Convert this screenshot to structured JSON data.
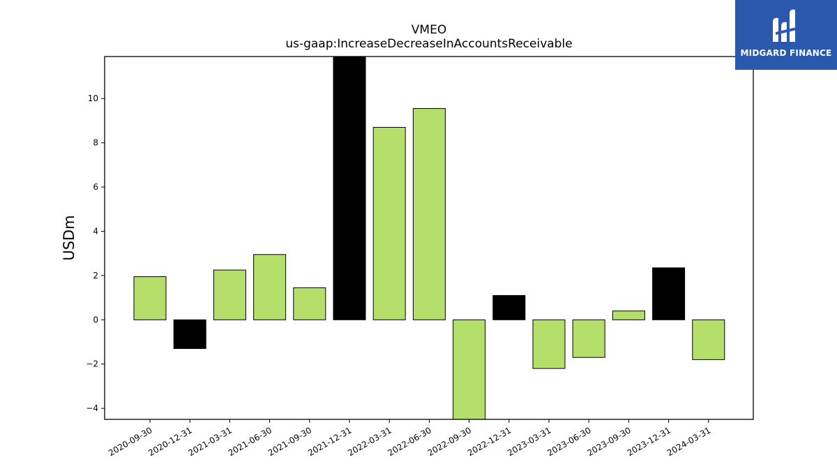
{
  "chart_data": {
    "type": "bar",
    "title": "VMEO",
    "subtitle": "us-gaap:IncreaseDecreaseInAccountsReceivable",
    "xlabel": "",
    "ylabel": "USDm",
    "categories": [
      "2020-09-30",
      "2020-12-31",
      "2021-03-31",
      "2021-06-30",
      "2021-09-30",
      "2021-12-31",
      "2022-03-31",
      "2022-06-30",
      "2022-09-30",
      "2022-12-31",
      "2023-03-31",
      "2023-06-30",
      "2023-09-30",
      "2023-12-31",
      "2024-03-31"
    ],
    "values": [
      1.95,
      -1.3,
      2.25,
      2.95,
      1.45,
      11.9,
      8.7,
      9.55,
      -4.6,
      1.1,
      -2.2,
      -1.7,
      0.4,
      2.35,
      -1.8
    ],
    "bar_colors": [
      "#b5df6b",
      "#000000",
      "#b5df6b",
      "#b5df6b",
      "#b5df6b",
      "#000000",
      "#b5df6b",
      "#b5df6b",
      "#b5df6b",
      "#000000",
      "#b5df6b",
      "#b5df6b",
      "#b5df6b",
      "#000000",
      "#b5df6b"
    ],
    "ylim": [
      -4.5,
      11.9
    ],
    "yticks": [
      -4,
      -2,
      0,
      2,
      4,
      6,
      8,
      10
    ],
    "ytick_labels": [
      "−4",
      "−2",
      "0",
      "2",
      "4",
      "6",
      "8",
      "10"
    ],
    "grid": false,
    "legend": "none"
  },
  "logo": {
    "text": "MIDGARD FINANCE",
    "color": "#2a58ad"
  }
}
